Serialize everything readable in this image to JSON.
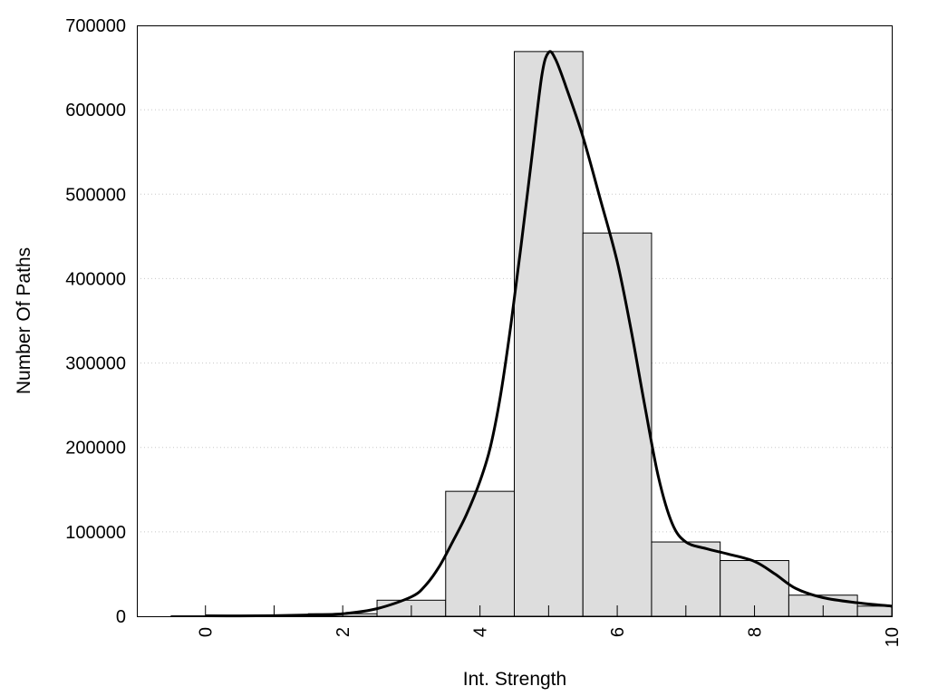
{
  "chart_data": {
    "type": "bar",
    "title": "",
    "xlabel": "Int. Strength",
    "ylabel": "Number Of Paths",
    "xlim": [
      -1,
      10
    ],
    "ylim": [
      0,
      700000
    ],
    "grid": "y-dotted",
    "x_tick_labels": [
      "0",
      "2",
      "4",
      "6",
      "8",
      "10"
    ],
    "y_tick_labels": [
      "0",
      "100000",
      "200000",
      "300000",
      "400000",
      "500000",
      "600000",
      "700000"
    ],
    "bars": [
      {
        "x": 0,
        "value": 500
      },
      {
        "x": 1,
        "value": 800
      },
      {
        "x": 2,
        "value": 3000
      },
      {
        "x": 3,
        "value": 19000
      },
      {
        "x": 4,
        "value": 148000
      },
      {
        "x": 5,
        "value": 669000
      },
      {
        "x": 6,
        "value": 454000
      },
      {
        "x": 7,
        "value": 88000
      },
      {
        "x": 8,
        "value": 66000
      },
      {
        "x": 9,
        "value": 25000
      },
      {
        "x": 10,
        "value": 12000
      }
    ],
    "bar_width": 1,
    "bar_color": "#dddddd",
    "curve": {
      "color": "#000000",
      "x": [
        0,
        0.5,
        1,
        1.5,
        2,
        2.5,
        3,
        3.2,
        3.4,
        3.6,
        3.8,
        4,
        4.15,
        4.3,
        4.45,
        4.6,
        4.75,
        4.9,
        5,
        5.1,
        5.25,
        5.5,
        5.75,
        6,
        6.2,
        6.4,
        6.6,
        6.8,
        7,
        7.3,
        7.6,
        8,
        8.3,
        8.6,
        9,
        9.5,
        10
      ],
      "y": [
        500,
        400,
        700,
        1500,
        3000,
        9000,
        23000,
        36000,
        58000,
        88000,
        120000,
        160000,
        200000,
        262000,
        345000,
        440000,
        540000,
        640000,
        668000,
        660000,
        628000,
        568000,
        495000,
        420000,
        340000,
        250000,
        165000,
        110000,
        88000,
        80000,
        74000,
        65000,
        50000,
        33000,
        22000,
        16000,
        12000
      ]
    }
  }
}
